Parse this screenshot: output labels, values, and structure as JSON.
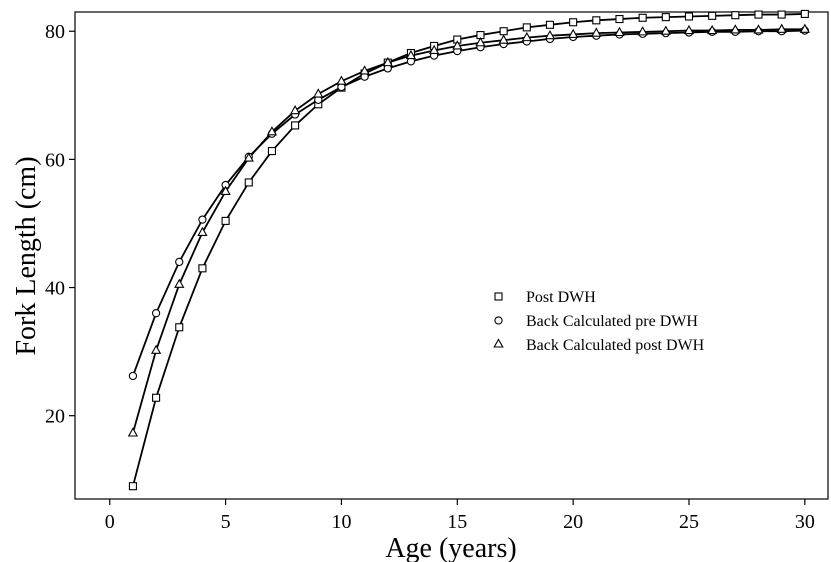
{
  "chart_data": {
    "type": "line",
    "title": "",
    "xlabel": "Age (years)",
    "ylabel": "Fork Length (cm)",
    "xlim": [
      -1.5,
      31
    ],
    "ylim": [
      7,
      83
    ],
    "xticks": [
      0,
      5,
      10,
      15,
      20,
      25,
      30
    ],
    "yticks": [
      20,
      40,
      60,
      80
    ],
    "grid": false,
    "legend_position": "center-right",
    "x": [
      1,
      2,
      3,
      4,
      5,
      6,
      7,
      8,
      9,
      10,
      11,
      12,
      13,
      14,
      15,
      16,
      17,
      18,
      19,
      20,
      21,
      22,
      23,
      24,
      25,
      26,
      27,
      28,
      29,
      30
    ],
    "series": [
      {
        "name": "Post DWH",
        "marker": "square",
        "values": [
          9.0,
          22.8,
          33.8,
          43.0,
          50.4,
          56.4,
          61.3,
          65.3,
          68.6,
          71.2,
          73.4,
          75.1,
          76.6,
          77.7,
          78.7,
          79.4,
          80.0,
          80.6,
          81.0,
          81.4,
          81.7,
          81.9,
          82.1,
          82.2,
          82.3,
          82.4,
          82.5,
          82.6,
          82.6,
          82.7
        ]
      },
      {
        "name": "Back Calculated pre DWH",
        "marker": "circle",
        "values": [
          26.2,
          36.0,
          44.0,
          50.6,
          56.0,
          60.4,
          64.0,
          67.0,
          69.3,
          71.3,
          72.9,
          74.2,
          75.3,
          76.2,
          76.9,
          77.5,
          78.0,
          78.4,
          78.8,
          79.1,
          79.3,
          79.5,
          79.6,
          79.7,
          79.8,
          79.9,
          79.9,
          80.0,
          80.0,
          80.1
        ]
      },
      {
        "name": "Back Calculated post DWH",
        "marker": "triangle",
        "values": [
          17.3,
          30.2,
          40.5,
          48.6,
          55.0,
          60.2,
          64.3,
          67.6,
          70.2,
          72.2,
          73.8,
          75.1,
          76.2,
          77.0,
          77.7,
          78.2,
          78.6,
          79.0,
          79.3,
          79.5,
          79.7,
          79.8,
          79.9,
          80.0,
          80.1,
          80.1,
          80.2,
          80.2,
          80.3,
          80.3
        ]
      }
    ]
  }
}
